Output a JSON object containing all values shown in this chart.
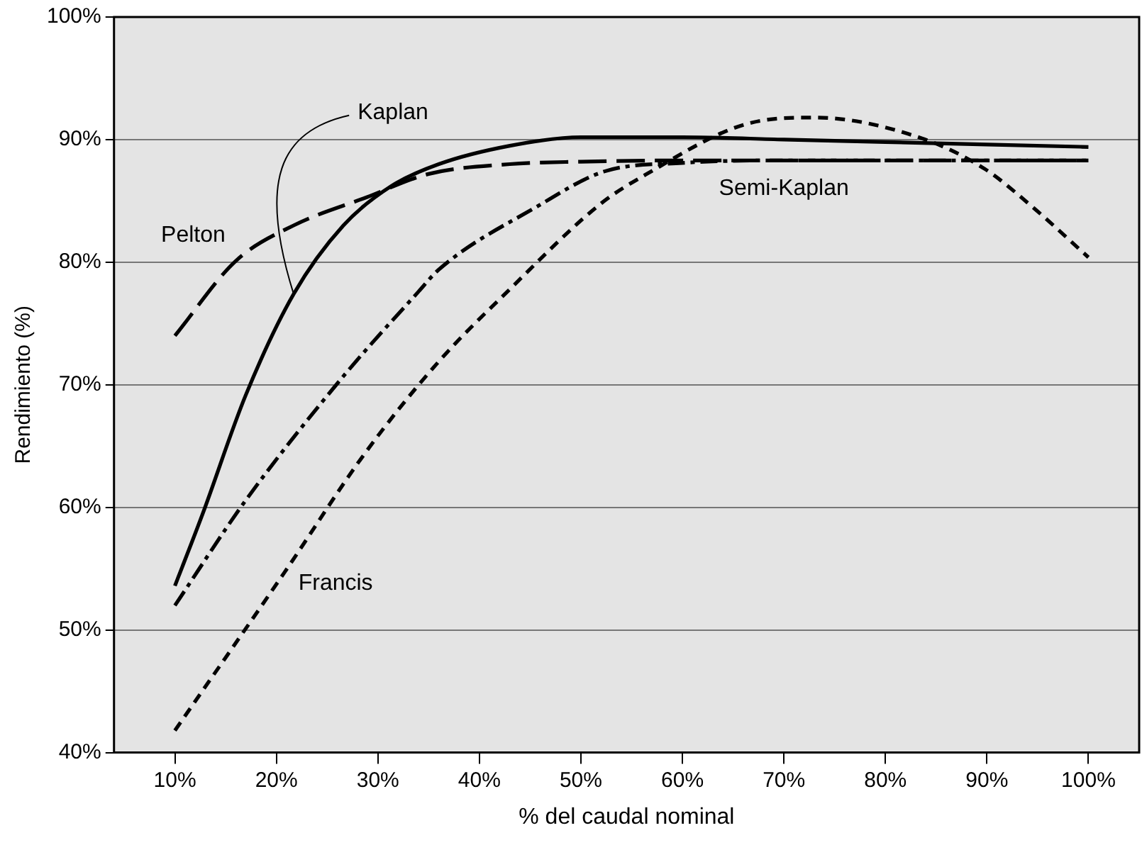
{
  "chart_data": {
    "type": "line",
    "xlabel": "% del caudal nominal",
    "ylabel": "Rendimiento (%)",
    "xlim": [
      4,
      105
    ],
    "ylim": [
      40,
      100
    ],
    "xticks": [
      {
        "value": 10,
        "label": "10%"
      },
      {
        "value": 20,
        "label": "20%"
      },
      {
        "value": 30,
        "label": "30%"
      },
      {
        "value": 40,
        "label": "40%"
      },
      {
        "value": 50,
        "label": "50%"
      },
      {
        "value": 60,
        "label": "60%"
      },
      {
        "value": 70,
        "label": "70%"
      },
      {
        "value": 80,
        "label": "80%"
      },
      {
        "value": 90,
        "label": "90%"
      },
      {
        "value": 100,
        "label": "100%"
      }
    ],
    "yticks": [
      {
        "value": 40,
        "label": "40%"
      },
      {
        "value": 50,
        "label": "50%"
      },
      {
        "value": 60,
        "label": "60%"
      },
      {
        "value": 70,
        "label": "70%"
      },
      {
        "value": 80,
        "label": "80%"
      },
      {
        "value": 90,
        "label": "90%"
      },
      {
        "value": 100,
        "label": "100%"
      }
    ],
    "grid": "y",
    "legend": false,
    "marker": "none",
    "series": [
      {
        "name": "Kaplan",
        "color": "#000000",
        "line_style": "solid",
        "x": [
          10,
          12.7,
          17,
          21.7,
          26.6,
          31.3,
          36,
          43,
          50,
          60,
          70,
          80,
          90,
          100
        ],
        "values": [
          53.6,
          59.4,
          69.2,
          77.4,
          83,
          86.2,
          88,
          89.5,
          90.2,
          90.2,
          90,
          89.8,
          89.6,
          89.4
        ]
      },
      {
        "name": "Pelton",
        "color": "#000000",
        "line_style": "longdash",
        "x": [
          10,
          16,
          21.7,
          28.9,
          35,
          43,
          50,
          60,
          70,
          80,
          90,
          100
        ],
        "values": [
          74,
          80.1,
          83,
          85.3,
          87.2,
          88,
          88.2,
          88.3,
          88.3,
          88.3,
          88.3,
          88.3
        ]
      },
      {
        "name": "Semi-Kaplan",
        "color": "#000000",
        "line_style": "dashdot",
        "x": [
          10,
          17,
          26.6,
          34,
          36,
          45.6,
          52.3,
          60,
          70,
          80,
          90,
          100
        ],
        "values": [
          52,
          60.6,
          70.7,
          77.6,
          79.4,
          84.5,
          87.4,
          88.1,
          88.3,
          88.3,
          88.3,
          88.3
        ]
      },
      {
        "name": "Francis",
        "color": "#000000",
        "line_style": "dashed",
        "x": [
          10,
          20.8,
          28.8,
          36,
          43,
          52,
          56.5,
          66,
          73,
          83.6,
          89.8,
          94.5,
          100
        ],
        "values": [
          41.8,
          54.7,
          64.5,
          71.9,
          77.8,
          84.8,
          87.2,
          91.2,
          91.8,
          90.1,
          87.6,
          84.5,
          80.4
        ]
      }
    ]
  }
}
